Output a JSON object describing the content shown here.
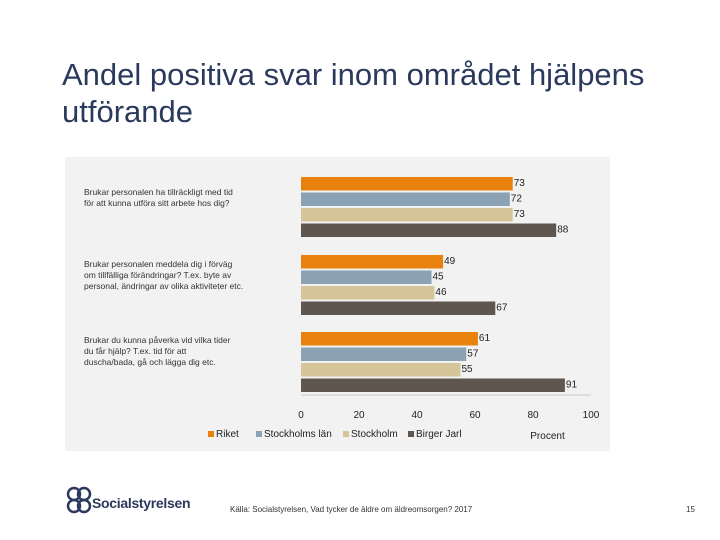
{
  "page": {
    "title": "Andel positiva svar inom området hjälpens utförande",
    "source": "Källa: Socialstyrelsen, Vad tycker de äldre om äldreomsorgen? 2017",
    "page_number": "15",
    "logo_text": "Socialstyrelsen"
  },
  "chart_data": {
    "type": "bar",
    "orientation": "horizontal",
    "categories": [
      "Brukar personalen ha tillräckligt med tid för att kunna utföra sitt arbete hos dig?",
      "Brukar personalen meddela dig i förväg om tillfälliga förändringar? T.ex. byte av personal, ändringar av olika aktiviteter etc.",
      "Brukar du kunna påverka vid vilka tider du får hjälp? T.ex. tid för att duscha/bada, gå och lägga dig etc."
    ],
    "category_lines": [
      [
        "Brukar personalen ha tillräckligt med tid",
        "för att kunna utföra sitt arbete hos dig?"
      ],
      [
        "Brukar personalen meddela dig i förväg",
        "om tillfälliga förändringar? T.ex. byte av",
        "personal, ändringar av olika aktiviteter etc."
      ],
      [
        "Brukar du kunna påverka vid vilka tider",
        "du får hjälp? T.ex. tid för att",
        "duscha/bada, gå och lägga dig etc."
      ]
    ],
    "series": [
      {
        "name": "Riket",
        "values": [
          73,
          49,
          61
        ],
        "color": "#e8820c"
      },
      {
        "name": "Stockholms län",
        "values": [
          72,
          45,
          57
        ],
        "color": "#8ba1b4"
      },
      {
        "name": "Stockholm",
        "values": [
          73,
          46,
          55
        ],
        "color": "#d6c49a"
      },
      {
        "name": "Birger Jarl",
        "values": [
          88,
          67,
          91
        ],
        "color": "#5f5650"
      }
    ],
    "xlim": [
      0,
      100
    ],
    "xticks": [
      0,
      20,
      40,
      60,
      80,
      100
    ],
    "xlabel": "Procent",
    "legend": "bottom",
    "grid": false
  }
}
